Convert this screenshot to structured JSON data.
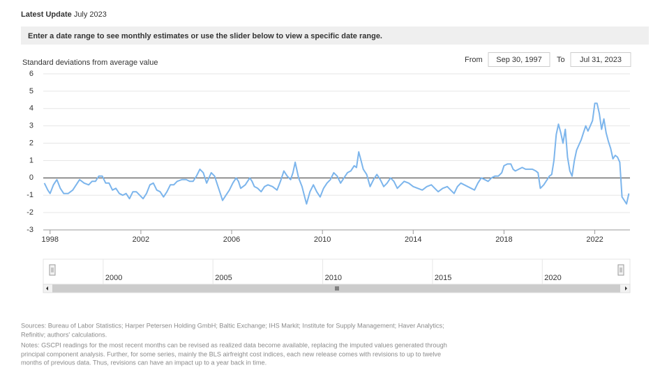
{
  "header": {
    "update_label": "Latest Update",
    "update_value": "July 2023",
    "banner": "Enter a date range to see monthly estimates or use the slider below to view a specific date range."
  },
  "range": {
    "from_label": "From",
    "from_value": "Sep 30, 1997",
    "to_label": "To",
    "to_value": "Jul 31, 2023"
  },
  "chart_data": {
    "type": "line",
    "y_label": "Standard deviations from average value",
    "series": [
      {
        "color": "#7cb5ec",
        "x": [
          1997.75,
          1997.9,
          1998.0,
          1998.15,
          1998.3,
          1998.45,
          1998.6,
          1998.8,
          1999.0,
          1999.15,
          1999.3,
          1999.5,
          1999.7,
          1999.85,
          2000.0,
          2000.15,
          2000.3,
          2000.45,
          2000.6,
          2000.75,
          2000.9,
          2001.05,
          2001.2,
          2001.35,
          2001.5,
          2001.65,
          2001.8,
          2001.95,
          2002.1,
          2002.25,
          2002.4,
          2002.55,
          2002.7,
          2002.85,
          2003.0,
          2003.15,
          2003.3,
          2003.45,
          2003.6,
          2003.8,
          2004.0,
          2004.15,
          2004.3,
          2004.45,
          2004.6,
          2004.75,
          2004.9,
          2005.0,
          2005.1,
          2005.25,
          2005.4,
          2005.5,
          2005.6,
          2005.75,
          2005.9,
          2006.05,
          2006.2,
          2006.3,
          2006.4,
          2006.6,
          2006.8,
          2006.9,
          2007.0,
          2007.15,
          2007.3,
          2007.45,
          2007.6,
          2007.8,
          2008.0,
          2008.15,
          2008.3,
          2008.45,
          2008.6,
          2008.7,
          2008.8,
          2008.95,
          2009.1,
          2009.2,
          2009.3,
          2009.45,
          2009.6,
          2009.75,
          2009.9,
          2010.05,
          2010.2,
          2010.35,
          2010.5,
          2010.65,
          2010.8,
          2010.95,
          2011.1,
          2011.25,
          2011.4,
          2011.5,
          2011.6,
          2011.7,
          2011.8,
          2011.95,
          2012.1,
          2012.25,
          2012.4,
          2012.55,
          2012.7,
          2012.85,
          2013.0,
          2013.15,
          2013.3,
          2013.45,
          2013.6,
          2013.8,
          2014.0,
          2014.2,
          2014.4,
          2014.6,
          2014.8,
          2014.95,
          2015.1,
          2015.3,
          2015.5,
          2015.65,
          2015.8,
          2015.95,
          2016.1,
          2016.25,
          2016.4,
          2016.55,
          2016.7,
          2016.85,
          2017.0,
          2017.15,
          2017.3,
          2017.45,
          2017.6,
          2017.75,
          2017.9,
          2018.0,
          2018.15,
          2018.3,
          2018.4,
          2018.5,
          2018.65,
          2018.8,
          2018.95,
          2019.1,
          2019.25,
          2019.4,
          2019.5,
          2019.6,
          2019.75,
          2019.9,
          2020.0,
          2020.1,
          2020.2,
          2020.3,
          2020.4,
          2020.5,
          2020.6,
          2020.7,
          2020.8,
          2020.9,
          2021.0,
          2021.1,
          2021.2,
          2021.3,
          2021.4,
          2021.5,
          2021.6,
          2021.7,
          2021.8,
          2021.9,
          2022.0,
          2022.1,
          2022.2,
          2022.3,
          2022.4,
          2022.5,
          2022.6,
          2022.7,
          2022.8,
          2022.9,
          2023.0,
          2023.1,
          2023.2,
          2023.3,
          2023.4,
          2023.5
        ],
        "values": [
          -0.3,
          -0.7,
          -0.9,
          -0.4,
          -0.1,
          -0.6,
          -0.9,
          -0.9,
          -0.7,
          -0.4,
          -0.1,
          -0.3,
          -0.4,
          -0.2,
          -0.2,
          0.1,
          0.1,
          -0.3,
          -0.3,
          -0.7,
          -0.6,
          -0.9,
          -1.0,
          -0.9,
          -1.2,
          -0.8,
          -0.8,
          -1.0,
          -1.2,
          -0.9,
          -0.4,
          -0.3,
          -0.7,
          -0.8,
          -1.1,
          -0.8,
          -0.4,
          -0.4,
          -0.2,
          -0.1,
          -0.1,
          -0.2,
          -0.2,
          0.1,
          0.5,
          0.3,
          -0.3,
          0.0,
          0.3,
          0.1,
          -0.5,
          -0.9,
          -1.3,
          -1.0,
          -0.7,
          -0.3,
          0.0,
          -0.2,
          -0.6,
          -0.4,
          0.0,
          -0.2,
          -0.5,
          -0.6,
          -0.8,
          -0.5,
          -0.4,
          -0.5,
          -0.7,
          -0.2,
          0.4,
          0.1,
          -0.1,
          0.3,
          0.9,
          0.0,
          -0.5,
          -1.0,
          -1.5,
          -0.8,
          -0.4,
          -0.8,
          -1.1,
          -0.6,
          -0.3,
          -0.1,
          0.3,
          0.1,
          -0.3,
          0.0,
          0.3,
          0.4,
          0.7,
          0.6,
          1.5,
          1.0,
          0.5,
          0.2,
          -0.5,
          -0.1,
          0.2,
          -0.1,
          -0.5,
          -0.3,
          0.0,
          -0.2,
          -0.6,
          -0.4,
          -0.2,
          -0.3,
          -0.5,
          -0.6,
          -0.7,
          -0.5,
          -0.4,
          -0.6,
          -0.8,
          -0.6,
          -0.5,
          -0.7,
          -0.9,
          -0.5,
          -0.3,
          -0.4,
          -0.5,
          -0.6,
          -0.7,
          -0.3,
          0.0,
          -0.1,
          -0.2,
          0.0,
          0.1,
          0.1,
          0.3,
          0.7,
          0.8,
          0.8,
          0.5,
          0.4,
          0.5,
          0.6,
          0.5,
          0.5,
          0.5,
          0.4,
          0.3,
          -0.6,
          -0.4,
          -0.1,
          0.1,
          0.2,
          1.0,
          2.5,
          3.1,
          2.6,
          2.0,
          2.8,
          1.2,
          0.4,
          0.1,
          1.0,
          1.6,
          1.9,
          2.2,
          2.6,
          3.0,
          2.7,
          3.0,
          3.3,
          4.3,
          4.3,
          3.7,
          2.8,
          3.4,
          2.6,
          2.1,
          1.7,
          1.1,
          1.3,
          1.2,
          0.9,
          -1.1,
          -1.3,
          -1.5,
          -0.9
        ]
      }
    ],
    "xlim": [
      1997.7,
      2023.55
    ],
    "xticks": [
      1998,
      2002,
      2006,
      2010,
      2014,
      2018,
      2022
    ],
    "ylim": [
      -3,
      6
    ],
    "yticks": [
      -3,
      -2,
      -1,
      0,
      1,
      2,
      3,
      4,
      5,
      6
    ],
    "grid": true
  },
  "navigator": {
    "xlim": [
      1997.7,
      2023.55
    ],
    "xticks": [
      2000,
      2005,
      2010,
      2015,
      2020
    ]
  },
  "footer": {
    "lines": [
      "Sources: Bureau of Labor Statistics; Harper Petersen Holding GmbH; Baltic Exchange; IHS Markit; Institute for Supply Management; Haver Analytics;",
      "Refinitiv; authors' calculations.",
      "Notes: GSCPI readings for the most recent months can be revised as realized data become available, replacing the imputed values generated through",
      "principal component analysis. Further, for some series, mainly the BLS airfreight cost indices, each new release comes with revisions to up to twelve",
      "months of previous data. Thus, revisions can have an impact up to a year back in time."
    ]
  }
}
